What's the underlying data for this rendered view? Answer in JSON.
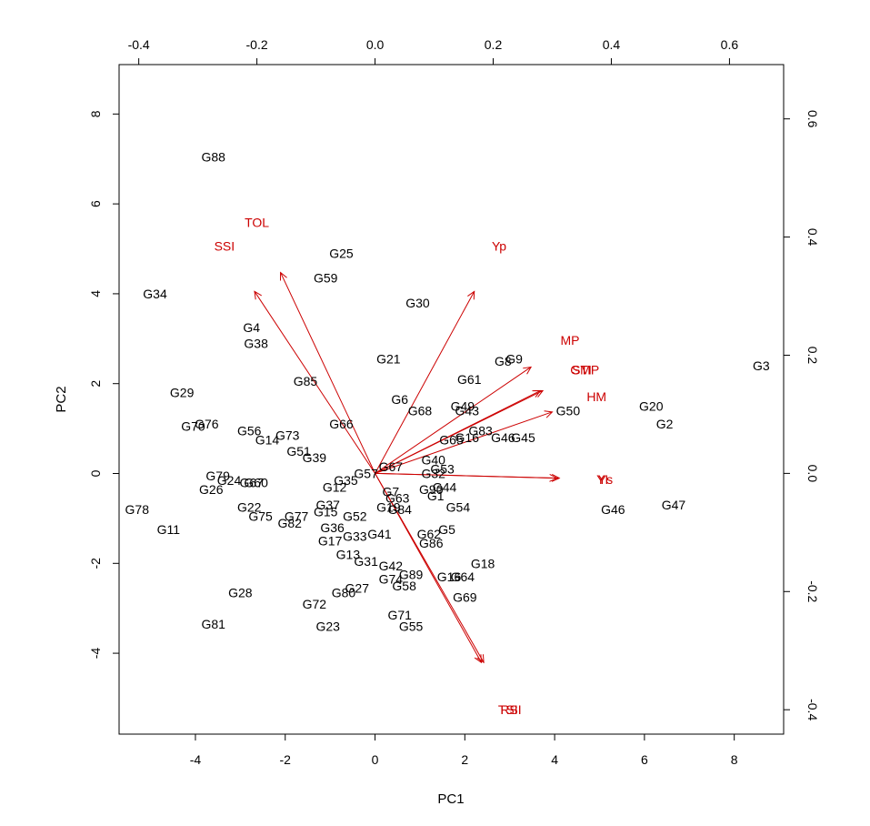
{
  "chart_data": {
    "type": "scatter",
    "subtype": "biplot",
    "xlabel": "PC1",
    "ylabel": "PC2",
    "xlim": [
      -5.7,
      9.1
    ],
    "ylim": [
      -5.8,
      9.1
    ],
    "xticks": [
      -4,
      -2,
      0,
      2,
      4,
      6,
      8
    ],
    "yticks": [
      -4,
      -2,
      0,
      2,
      4,
      6,
      8
    ],
    "loading_xlim": [
      -0.4333,
      0.6917
    ],
    "loading_ylim": [
      -0.4413,
      0.6919
    ],
    "loading_ticks": [
      -0.4,
      -0.2,
      0.0,
      0.2,
      0.4,
      0.6
    ],
    "arrow_color": "#cc0000",
    "score_color": "#000000",
    "scores": [
      {
        "label": "G88",
        "x": -3.6,
        "y": 7.05
      },
      {
        "label": "G34",
        "x": -4.9,
        "y": 4.0
      },
      {
        "label": "G25",
        "x": -0.75,
        "y": 4.9
      },
      {
        "label": "G59",
        "x": -1.1,
        "y": 4.35
      },
      {
        "label": "G30",
        "x": 0.95,
        "y": 3.8
      },
      {
        "label": "G4",
        "x": -2.75,
        "y": 3.25
      },
      {
        "label": "G38",
        "x": -2.65,
        "y": 2.9
      },
      {
        "label": "G21",
        "x": 0.3,
        "y": 2.55
      },
      {
        "label": "G8",
        "x": 2.85,
        "y": 2.5
      },
      {
        "label": "G9",
        "x": 3.1,
        "y": 2.55
      },
      {
        "label": "G3",
        "x": 8.6,
        "y": 2.4
      },
      {
        "label": "G61",
        "x": 2.1,
        "y": 2.1
      },
      {
        "label": "G29",
        "x": -4.3,
        "y": 1.8
      },
      {
        "label": "G85",
        "x": -1.55,
        "y": 2.05
      },
      {
        "label": "G6",
        "x": 0.55,
        "y": 1.65
      },
      {
        "label": "G20",
        "x": 6.15,
        "y": 1.5
      },
      {
        "label": "G49",
        "x": 1.95,
        "y": 1.5
      },
      {
        "label": "G43",
        "x": 2.05,
        "y": 1.4
      },
      {
        "label": "G68",
        "x": 1.0,
        "y": 1.4
      },
      {
        "label": "G50",
        "x": 4.3,
        "y": 1.4
      },
      {
        "label": "G2",
        "x": 6.45,
        "y": 1.1
      },
      {
        "label": "G70",
        "x": -4.05,
        "y": 1.05
      },
      {
        "label": "G76",
        "x": -3.75,
        "y": 1.1
      },
      {
        "label": "G66",
        "x": -0.75,
        "y": 1.1
      },
      {
        "label": "G56",
        "x": -2.8,
        "y": 0.95
      },
      {
        "label": "G73",
        "x": -1.95,
        "y": 0.85
      },
      {
        "label": "G14",
        "x": -2.4,
        "y": 0.75
      },
      {
        "label": "G83",
        "x": 2.35,
        "y": 0.95
      },
      {
        "label": "G16",
        "x": 2.05,
        "y": 0.8
      },
      {
        "label": "G65",
        "x": 1.7,
        "y": 0.75
      },
      {
        "label": "G46",
        "x": 2.85,
        "y": 0.8
      },
      {
        "label": "G45",
        "x": 3.3,
        "y": 0.8
      },
      {
        "label": "G51",
        "x": -1.7,
        "y": 0.5
      },
      {
        "label": "G39",
        "x": -1.35,
        "y": 0.35
      },
      {
        "label": "G40",
        "x": 1.3,
        "y": 0.3
      },
      {
        "label": "G67",
        "x": 0.35,
        "y": 0.15
      },
      {
        "label": "G53",
        "x": 1.5,
        "y": 0.1
      },
      {
        "label": "G32",
        "x": 1.3,
        "y": 0.0
      },
      {
        "label": "G57",
        "x": -0.2,
        "y": 0.0
      },
      {
        "label": "G35",
        "x": -0.65,
        "y": -0.15
      },
      {
        "label": "G79",
        "x": -3.5,
        "y": -0.05
      },
      {
        "label": "G24",
        "x": -3.25,
        "y": -0.15
      },
      {
        "label": "G67",
        "x": -2.75,
        "y": -0.2
      },
      {
        "label": "G60",
        "x": -2.65,
        "y": -0.2
      },
      {
        "label": "G12",
        "x": -0.9,
        "y": -0.3
      },
      {
        "label": "G26",
        "x": -3.65,
        "y": -0.35
      },
      {
        "label": "G44",
        "x": 1.55,
        "y": -0.3
      },
      {
        "label": "G90",
        "x": 1.25,
        "y": -0.35
      },
      {
        "label": "G7",
        "x": 0.35,
        "y": -0.4
      },
      {
        "label": "G1",
        "x": 1.35,
        "y": -0.5
      },
      {
        "label": "G63",
        "x": 0.5,
        "y": -0.55
      },
      {
        "label": "G54",
        "x": 1.85,
        "y": -0.75
      },
      {
        "label": "G37",
        "x": -1.05,
        "y": -0.7
      },
      {
        "label": "G78",
        "x": -5.3,
        "y": -0.8
      },
      {
        "label": "G22",
        "x": -2.8,
        "y": -0.75
      },
      {
        "label": "G15",
        "x": -1.1,
        "y": -0.85
      },
      {
        "label": "G19",
        "x": 0.3,
        "y": -0.75
      },
      {
        "label": "G84",
        "x": 0.55,
        "y": -0.8
      },
      {
        "label": "G75",
        "x": -2.55,
        "y": -0.95
      },
      {
        "label": "G77",
        "x": -1.75,
        "y": -0.95
      },
      {
        "label": "G52",
        "x": -0.45,
        "y": -0.95
      },
      {
        "label": "G82",
        "x": -1.9,
        "y": -1.1
      },
      {
        "label": "G11",
        "x": -4.6,
        "y": -1.25
      },
      {
        "label": "G36",
        "x": -0.95,
        "y": -1.2
      },
      {
        "label": "G5",
        "x": 1.6,
        "y": -1.25
      },
      {
        "label": "G62",
        "x": 1.2,
        "y": -1.35
      },
      {
        "label": "G41",
        "x": 0.1,
        "y": -1.35
      },
      {
        "label": "G33",
        "x": -0.45,
        "y": -1.4
      },
      {
        "label": "G17",
        "x": -1.0,
        "y": -1.5
      },
      {
        "label": "G86",
        "x": 1.25,
        "y": -1.55
      },
      {
        "label": "G13",
        "x": -0.6,
        "y": -1.8
      },
      {
        "label": "G31",
        "x": -0.2,
        "y": -1.95
      },
      {
        "label": "G18",
        "x": 2.4,
        "y": -2.0
      },
      {
        "label": "G42",
        "x": 0.35,
        "y": -2.05
      },
      {
        "label": "G89",
        "x": 0.8,
        "y": -2.25
      },
      {
        "label": "G16",
        "x": 1.65,
        "y": -2.3
      },
      {
        "label": "G64",
        "x": 1.95,
        "y": -2.3
      },
      {
        "label": "G74",
        "x": 0.35,
        "y": -2.35
      },
      {
        "label": "G58",
        "x": 0.65,
        "y": -2.5
      },
      {
        "label": "G27",
        "x": -0.4,
        "y": -2.55
      },
      {
        "label": "G80",
        "x": -0.7,
        "y": -2.65
      },
      {
        "label": "G28",
        "x": -3.0,
        "y": -2.65
      },
      {
        "label": "G69",
        "x": 2.0,
        "y": -2.75
      },
      {
        "label": "G72",
        "x": -1.35,
        "y": -2.9
      },
      {
        "label": "G71",
        "x": 0.55,
        "y": -3.15
      },
      {
        "label": "G55",
        "x": 0.8,
        "y": -3.4
      },
      {
        "label": "G81",
        "x": -3.6,
        "y": -3.35
      },
      {
        "label": "G23",
        "x": -1.05,
        "y": -3.4
      },
      {
        "label": "G46",
        "x": 5.3,
        "y": -0.8
      },
      {
        "label": "G47",
        "x": 6.65,
        "y": -0.7
      }
    ],
    "loadings": [
      {
        "label": "TOL",
        "x": -0.2,
        "y": 0.425
      },
      {
        "label": "SSI",
        "x": -0.255,
        "y": 0.385
      },
      {
        "label": "Yp",
        "x": 0.21,
        "y": 0.385
      },
      {
        "label": "MP",
        "x": 0.33,
        "y": 0.225
      },
      {
        "label": "STI",
        "x": 0.35,
        "y": 0.175
      },
      {
        "label": "GMP",
        "x": 0.355,
        "y": 0.175
      },
      {
        "label": "HM",
        "x": 0.375,
        "y": 0.13
      },
      {
        "label": "Ys",
        "x": 0.39,
        "y": -0.01
      },
      {
        "label": "YI",
        "x": 0.385,
        "y": -0.01
      },
      {
        "label": "RSI",
        "x": 0.23,
        "y": -0.4
      },
      {
        "label": "TSI",
        "x": 0.225,
        "y": -0.4
      }
    ]
  }
}
